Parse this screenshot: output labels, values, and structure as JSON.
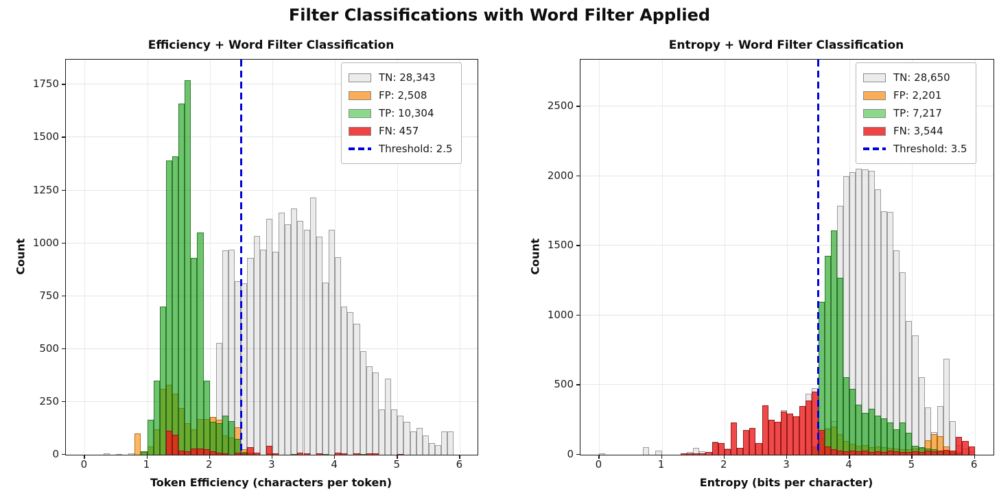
{
  "figure": {
    "title": "Filter Classifications with Word Filter Applied"
  },
  "colors": {
    "threshold": "#0000DD",
    "axis": "#141414",
    "grid": "#e4e4e4",
    "series": {
      "TN": {
        "fill": "rgba(0,0,0,0.08)",
        "edge": "rgba(128,128,128,0.75)",
        "legend_swatch": "#ECECEC"
      },
      "FP": {
        "fill": "rgba(255,140,0,0.62)",
        "edge": "rgba(150,85,15,0.75)",
        "legend_swatch": "#F9AE57"
      },
      "TP": {
        "fill": "rgba(20,160,20,0.62)",
        "edge": "rgba(15,90,15,0.70)",
        "legend_swatch": "#8CD98C"
      },
      "FN": {
        "fill": "rgba(236,28,28,0.80)",
        "edge": "rgba(130,15,15,0.80)",
        "legend_swatch": "#F04343"
      }
    }
  },
  "chart_data": [
    {
      "type": "histogram",
      "title": "Efficiency + Word Filter Classification",
      "xlabel": "Token Efficiency (characters per token)",
      "ylabel": "Count",
      "xlim": [
        -0.3,
        6.28
      ],
      "ylim": [
        0,
        1868
      ],
      "xticks": [
        0,
        1,
        2,
        3,
        4,
        5,
        6
      ],
      "yticks": [
        0,
        250,
        500,
        750,
        1000,
        1250,
        1500,
        1750
      ],
      "bin_width": 0.1,
      "threshold": 2.5,
      "legend": [
        {
          "series": "TN",
          "label": "TN: 28,343"
        },
        {
          "series": "FP",
          "label": "FP: 2,508"
        },
        {
          "series": "TP",
          "label": "TP: 10,304"
        },
        {
          "series": "FN",
          "label": "FN: 457"
        },
        {
          "series": "threshold",
          "label": "Threshold: 2.5"
        }
      ],
      "series": [
        {
          "name": "TN",
          "total": 28343,
          "bins": [
            [
              0.3,
              5
            ],
            [
              0.5,
              4
            ],
            [
              0.7,
              8
            ],
            [
              1.5,
              6
            ],
            [
              1.9,
              12
            ],
            [
              2.0,
              180
            ],
            [
              2.1,
              530
            ],
            [
              2.2,
              965
            ],
            [
              2.3,
              970
            ],
            [
              2.4,
              820
            ],
            [
              2.5,
              810
            ],
            [
              2.6,
              930
            ],
            [
              2.7,
              1035
            ],
            [
              2.8,
              970
            ],
            [
              2.9,
              1115
            ],
            [
              3.0,
              960
            ],
            [
              3.1,
              1145
            ],
            [
              3.2,
              1090
            ],
            [
              3.3,
              1165
            ],
            [
              3.4,
              1105
            ],
            [
              3.5,
              1065
            ],
            [
              3.6,
              1215
            ],
            [
              3.7,
              1030
            ],
            [
              3.8,
              815
            ],
            [
              3.9,
              1065
            ],
            [
              4.0,
              935
            ],
            [
              4.1,
              700
            ],
            [
              4.2,
              675
            ],
            [
              4.3,
              620
            ],
            [
              4.4,
              490
            ],
            [
              4.5,
              420
            ],
            [
              4.6,
              390
            ],
            [
              4.7,
              215
            ],
            [
              4.8,
              360
            ],
            [
              4.9,
              215
            ],
            [
              5.0,
              185
            ],
            [
              5.1,
              155
            ],
            [
              5.2,
              110
            ],
            [
              5.3,
              125
            ],
            [
              5.4,
              90
            ],
            [
              5.5,
              55
            ],
            [
              5.6,
              45
            ],
            [
              5.7,
              110
            ],
            [
              5.8,
              110
            ]
          ]
        },
        {
          "name": "FP",
          "total": 2508,
          "bins": [
            [
              0.8,
              100
            ],
            [
              0.9,
              12
            ],
            [
              1.0,
              40
            ],
            [
              1.1,
              120
            ],
            [
              1.2,
              310
            ],
            [
              1.3,
              330
            ],
            [
              1.4,
              290
            ],
            [
              1.5,
              220
            ],
            [
              1.6,
              150
            ],
            [
              1.7,
              120
            ],
            [
              1.8,
              170
            ],
            [
              1.9,
              170
            ],
            [
              2.0,
              180
            ],
            [
              2.1,
              165
            ],
            [
              2.2,
              90
            ],
            [
              2.3,
              80
            ],
            [
              2.4,
              130
            ],
            [
              2.5,
              25
            ],
            [
              2.6,
              10
            ]
          ]
        },
        {
          "name": "TP",
          "total": 10304,
          "bins": [
            [
              0.9,
              15
            ],
            [
              1.0,
              165
            ],
            [
              1.1,
              350
            ],
            [
              1.2,
              700
            ],
            [
              1.3,
              1390
            ],
            [
              1.4,
              1410
            ],
            [
              1.5,
              1660
            ],
            [
              1.6,
              1770
            ],
            [
              1.7,
              930
            ],
            [
              1.8,
              1050
            ],
            [
              1.9,
              350
            ],
            [
              2.0,
              155
            ],
            [
              2.1,
              150
            ],
            [
              2.2,
              185
            ],
            [
              2.3,
              160
            ],
            [
              2.4,
              75
            ],
            [
              2.5,
              12
            ],
            [
              2.6,
              8
            ],
            [
              2.9,
              6
            ],
            [
              3.3,
              4
            ],
            [
              3.8,
              3
            ],
            [
              4.4,
              2
            ]
          ]
        },
        {
          "name": "FN",
          "total": 457,
          "bins": [
            [
              1.3,
              115
            ],
            [
              1.4,
              95
            ],
            [
              1.5,
              20
            ],
            [
              1.6,
              15
            ],
            [
              1.7,
              30
            ],
            [
              1.8,
              30
            ],
            [
              1.9,
              25
            ],
            [
              2.0,
              15
            ],
            [
              2.1,
              10
            ],
            [
              2.2,
              8
            ],
            [
              2.4,
              10
            ],
            [
              2.5,
              8
            ],
            [
              2.6,
              35
            ],
            [
              2.7,
              10
            ],
            [
              2.9,
              42
            ],
            [
              3.0,
              8
            ],
            [
              3.4,
              10
            ],
            [
              3.5,
              8
            ],
            [
              3.7,
              6
            ],
            [
              4.0,
              10
            ],
            [
              4.1,
              8
            ],
            [
              4.3,
              6
            ],
            [
              4.5,
              8
            ],
            [
              4.6,
              5
            ],
            [
              5.0,
              4
            ]
          ]
        }
      ]
    },
    {
      "type": "histogram",
      "title": "Entropy + Word Filter Classification",
      "xlabel": "Entropy (bits per character)",
      "ylabel": "Count",
      "xlim": [
        -0.3,
        6.3
      ],
      "ylim": [
        0,
        2837
      ],
      "xticks": [
        0,
        1,
        2,
        3,
        4,
        5,
        6
      ],
      "yticks": [
        0,
        500,
        1000,
        1500,
        2000,
        2500
      ],
      "bin_width": 0.1,
      "threshold": 3.5,
      "legend": [
        {
          "series": "TN",
          "label": "TN: 28,650"
        },
        {
          "series": "FP",
          "label": "FP: 2,201"
        },
        {
          "series": "TP",
          "label": "TP: 7,217"
        },
        {
          "series": "FN",
          "label": "FN: 3,544"
        },
        {
          "series": "threshold",
          "label": "Threshold: 3.5"
        }
      ],
      "series": [
        {
          "name": "TN",
          "total": 28650,
          "bins": [
            [
              0.0,
              8
            ],
            [
              0.7,
              55
            ],
            [
              0.9,
              32
            ],
            [
              1.4,
              20
            ],
            [
              1.5,
              48
            ],
            [
              1.6,
              25
            ],
            [
              1.8,
              95
            ],
            [
              2.0,
              42
            ],
            [
              2.9,
              322
            ],
            [
              3.3,
              440
            ],
            [
              3.4,
              480
            ],
            [
              3.5,
              160
            ],
            [
              3.6,
              190
            ],
            [
              3.7,
              240
            ],
            [
              3.8,
              1790
            ],
            [
              3.9,
              2000
            ],
            [
              4.0,
              2030
            ],
            [
              4.1,
              2055
            ],
            [
              4.2,
              2050
            ],
            [
              4.3,
              2040
            ],
            [
              4.4,
              1905
            ],
            [
              4.5,
              1750
            ],
            [
              4.6,
              1745
            ],
            [
              4.7,
              1470
            ],
            [
              4.8,
              1310
            ],
            [
              4.9,
              960
            ],
            [
              5.0,
              855
            ],
            [
              5.1,
              556
            ],
            [
              5.2,
              342
            ],
            [
              5.3,
              165
            ],
            [
              5.4,
              350
            ],
            [
              5.5,
              690
            ],
            [
              5.6,
              240
            ],
            [
              5.7,
              70
            ],
            [
              5.8,
              45
            ],
            [
              5.9,
              25
            ]
          ]
        },
        {
          "name": "FP",
          "total": 2201,
          "bins": [
            [
              3.5,
              120
            ],
            [
              3.6,
              180
            ],
            [
              3.7,
              200
            ],
            [
              3.8,
              150
            ],
            [
              3.9,
              100
            ],
            [
              4.0,
              80
            ],
            [
              4.1,
              65
            ],
            [
              4.2,
              70
            ],
            [
              4.3,
              55
            ],
            [
              4.4,
              60
            ],
            [
              4.5,
              55
            ],
            [
              4.6,
              50
            ],
            [
              4.7,
              45
            ],
            [
              4.8,
              40
            ],
            [
              4.9,
              40
            ],
            [
              5.0,
              45
            ],
            [
              5.1,
              50
            ],
            [
              5.2,
              105
            ],
            [
              5.3,
              150
            ],
            [
              5.4,
              135
            ],
            [
              5.5,
              60
            ],
            [
              5.6,
              30
            ],
            [
              5.7,
              20
            ]
          ]
        },
        {
          "name": "TP",
          "total": 7217,
          "bins": [
            [
              3.4,
              60
            ],
            [
              3.5,
              1100
            ],
            [
              3.6,
              1430
            ],
            [
              3.7,
              1610
            ],
            [
              3.8,
              1270
            ],
            [
              3.9,
              556
            ],
            [
              4.0,
              475
            ],
            [
              4.1,
              360
            ],
            [
              4.2,
              300
            ],
            [
              4.3,
              330
            ],
            [
              4.4,
              280
            ],
            [
              4.5,
              260
            ],
            [
              4.6,
              230
            ],
            [
              4.7,
              180
            ],
            [
              4.8,
              230
            ],
            [
              4.9,
              160
            ],
            [
              5.0,
              65
            ],
            [
              5.1,
              55
            ],
            [
              5.2,
              45
            ],
            [
              5.3,
              38
            ],
            [
              5.4,
              32
            ],
            [
              5.5,
              25
            ],
            [
              5.6,
              15
            ],
            [
              5.7,
              10
            ]
          ]
        },
        {
          "name": "FN",
          "total": 3544,
          "bins": [
            [
              1.3,
              8
            ],
            [
              1.4,
              12
            ],
            [
              1.5,
              10
            ],
            [
              1.6,
              8
            ],
            [
              1.7,
              20
            ],
            [
              1.8,
              88
            ],
            [
              1.9,
              86
            ],
            [
              2.0,
              40
            ],
            [
              2.1,
              231
            ],
            [
              2.2,
              47
            ],
            [
              2.3,
              177
            ],
            [
              2.4,
              193
            ],
            [
              2.5,
              86
            ],
            [
              2.6,
              353
            ],
            [
              2.7,
              251
            ],
            [
              2.8,
              236
            ],
            [
              2.9,
              308
            ],
            [
              3.0,
              295
            ],
            [
              3.1,
              275
            ],
            [
              3.2,
              350
            ],
            [
              3.3,
              391
            ],
            [
              3.4,
              455
            ],
            [
              3.5,
              175
            ],
            [
              3.6,
              60
            ],
            [
              3.7,
              40
            ],
            [
              3.8,
              30
            ],
            [
              3.9,
              25
            ],
            [
              4.0,
              30
            ],
            [
              4.1,
              25
            ],
            [
              4.2,
              28
            ],
            [
              4.3,
              22
            ],
            [
              4.4,
              25
            ],
            [
              4.5,
              20
            ],
            [
              4.6,
              28
            ],
            [
              4.7,
              25
            ],
            [
              4.8,
              22
            ],
            [
              4.9,
              20
            ],
            [
              5.0,
              25
            ],
            [
              5.1,
              22
            ],
            [
              5.2,
              28
            ],
            [
              5.3,
              25
            ],
            [
              5.4,
              30
            ],
            [
              5.5,
              35
            ],
            [
              5.6,
              30
            ],
            [
              5.7,
              130
            ],
            [
              5.8,
              100
            ],
            [
              5.9,
              60
            ]
          ]
        }
      ]
    }
  ]
}
